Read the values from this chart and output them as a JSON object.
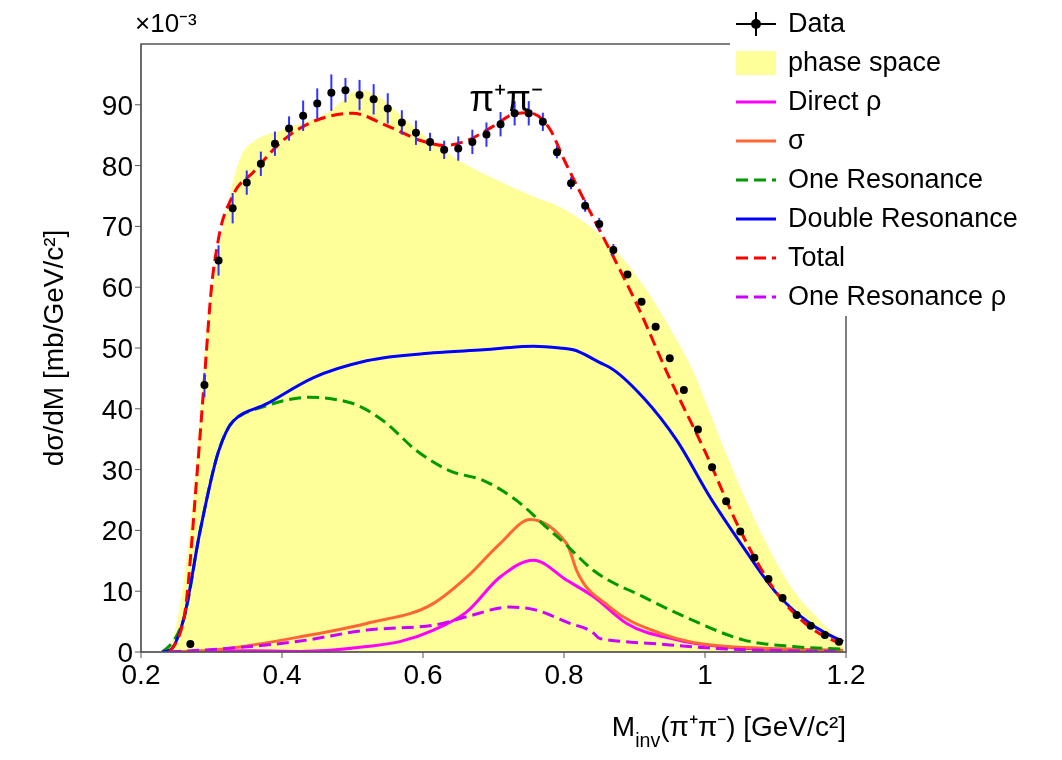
{
  "chart_data": {
    "type": "line",
    "xlabel": "M$_{inv}$(π⁺π⁻) [GeV/c²]",
    "ylabel": "dσ/dM [mb/GeV/c²]",
    "annotations": [
      "×10⁻³",
      "π⁺π⁻"
    ],
    "xlim": [
      0.2,
      1.2
    ],
    "xticks": [
      0.2,
      0.4,
      0.6,
      0.8,
      1,
      1.2
    ],
    "ylim": [
      0,
      100
    ],
    "yticks": [
      0,
      10,
      20,
      30,
      40,
      50,
      60,
      70,
      80,
      90
    ],
    "grid": false,
    "legend": "top right",
    "series": [
      {
        "name": "Data",
        "type": "scatter",
        "marker": "circle",
        "color": "#000000",
        "x": [
          0.27,
          0.29,
          0.31,
          0.33,
          0.35,
          0.37,
          0.39,
          0.41,
          0.43,
          0.45,
          0.47,
          0.49,
          0.51,
          0.53,
          0.55,
          0.57,
          0.59,
          0.61,
          0.63,
          0.65,
          0.67,
          0.69,
          0.71,
          0.73,
          0.75,
          0.77,
          0.79,
          0.81,
          0.83,
          0.85,
          0.87,
          0.89,
          0.91,
          0.93,
          0.95,
          0.97,
          0.99,
          1.01,
          1.03,
          1.05,
          1.07,
          1.09,
          1.11,
          1.13,
          1.15,
          1.17,
          1.19
        ],
        "values": [
          1.3,
          43.9,
          64.4,
          73.0,
          77.2,
          80.3,
          83.6,
          86.1,
          88.2,
          90.2,
          92.0,
          92.4,
          91.6,
          90.9,
          89.4,
          87.1,
          85.4,
          83.9,
          82.6,
          82.8,
          83.9,
          85.1,
          86.8,
          88.6,
          88.6,
          87.2,
          82.2,
          77.1,
          73.4,
          70.4,
          66.1,
          62.1,
          57.6,
          53.5,
          48.3,
          43.1,
          36.6,
          30.4,
          24.8,
          19.8,
          15.5,
          12.0,
          8.9,
          6.1,
          4.3,
          2.8,
          1.7
        ],
        "errors": [
          null,
          2,
          2.5,
          2.5,
          2,
          2,
          2,
          2,
          2.5,
          2.5,
          3,
          2,
          2.5,
          2.5,
          2.5,
          2,
          2,
          1.5,
          1.5,
          2,
          2,
          2,
          2,
          2,
          2,
          1.5,
          1,
          1,
          1,
          1,
          1,
          null,
          null,
          null,
          null,
          null,
          null,
          null,
          null,
          null,
          null,
          null,
          null,
          null,
          null,
          null,
          null
        ]
      },
      {
        "name": "phase space",
        "type": "area",
        "color": "#ffff99",
        "x": [
          0.22,
          0.236,
          0.255,
          0.274,
          0.293,
          0.316,
          0.345,
          0.359,
          0.407,
          0.463,
          0.511,
          0.534,
          0.558,
          0.591,
          0.638,
          0.709,
          0.756,
          0.794,
          0.851,
          0.915,
          0.95,
          0.988,
          1.002,
          1.04,
          1.078,
          1.125,
          1.163,
          1.196
        ],
        "values": [
          0,
          0.3,
          7.4,
          25.5,
          52.8,
          69.7,
          82.3,
          83.9,
          86.1,
          88.6,
          92.4,
          91.6,
          89.4,
          85.9,
          81.8,
          77.4,
          74.9,
          73.2,
          68.6,
          59.9,
          53.3,
          44.9,
          40.8,
          29.8,
          20.0,
          10.2,
          5.2,
          1.4
        ]
      },
      {
        "name": "Direct ρ",
        "type": "line",
        "color": "#ff00ff",
        "line_style": "solid",
        "x": [
          0.24,
          0.35,
          0.426,
          0.52,
          0.567,
          0.615,
          0.662,
          0.709,
          0.757,
          0.804,
          0.842,
          0.889,
          0.96,
          1.054,
          1.19
        ],
        "values": [
          0,
          0.2,
          0.1,
          0.9,
          1.7,
          3.6,
          6.6,
          12.3,
          15.1,
          11.8,
          9.1,
          4.7,
          2.0,
          0.6,
          0.1
        ]
      },
      {
        "name": "σ",
        "type": "line",
        "color": "#ff6633",
        "line_style": "solid",
        "x": [
          0.24,
          0.3,
          0.35,
          0.426,
          0.52,
          0.615,
          0.662,
          0.709,
          0.752,
          0.804,
          0.818,
          0.865,
          0.936,
          1.031,
          1.196
        ],
        "values": [
          0,
          0.3,
          1,
          2.5,
          4.7,
          8.0,
          12.3,
          17.8,
          21.8,
          17.8,
          13.4,
          7.4,
          3.1,
          0.9,
          0.3
        ]
      },
      {
        "name": "One Resonance",
        "type": "line",
        "color": "#009900",
        "line_style": "dashed",
        "x": [
          0.23,
          0.26,
          0.284,
          0.31,
          0.331,
          0.378,
          0.44,
          0.497,
          0.544,
          0.591,
          0.638,
          0.686,
          0.733,
          0.78,
          0.794,
          0.842,
          0.912,
          0.983,
          1.054,
          1.125,
          1.196
        ],
        "values": [
          0,
          5.2,
          20,
          33,
          38,
          40.5,
          41.9,
          41.0,
          38.0,
          33.1,
          29.8,
          28.2,
          24.9,
          20.0,
          18.6,
          13.4,
          9.1,
          5.2,
          2.0,
          0.9,
          0.5
        ]
      },
      {
        "name": "Double Resonance",
        "type": "line",
        "color": "#0000ff",
        "line_style": "solid",
        "x": [
          0.23,
          0.241,
          0.26,
          0.284,
          0.31,
          0.331,
          0.378,
          0.444,
          0.52,
          0.615,
          0.686,
          0.757,
          0.794,
          0.813,
          0.851,
          0.865,
          0.912,
          0.96,
          1.007,
          1.054,
          1.102,
          1.149,
          1.196
        ],
        "values": [
          0,
          0.3,
          5.2,
          20,
          33,
          38.0,
          40.8,
          45.1,
          47.9,
          49.2,
          49.7,
          50.3,
          50.0,
          49.7,
          47.6,
          46.8,
          41.9,
          34.8,
          25.5,
          17.3,
          9.6,
          4.7,
          1.7
        ]
      },
      {
        "name": "Total",
        "type": "line",
        "color": "#ff0000",
        "line_style": "dashed",
        "x": [
          0.24,
          0.26,
          0.28,
          0.29,
          0.3,
          0.31,
          0.33,
          0.36,
          0.4,
          0.45,
          0.5,
          0.55,
          0.6,
          0.63,
          0.66,
          0.7,
          0.73,
          0.75,
          0.78,
          0.8,
          0.83,
          0.87,
          0.9,
          0.95,
          1.0,
          1.05,
          1.1,
          1.15,
          1.19
        ],
        "values": [
          0,
          5,
          30,
          45,
          60,
          68,
          75,
          79,
          84,
          87.5,
          88.6,
          86.5,
          84,
          83.3,
          84,
          86.5,
          88.5,
          88.7,
          86,
          81,
          74,
          65,
          58,
          45,
          33,
          20,
          10,
          4,
          1.5
        ]
      },
      {
        "name": "One Resonance ρ",
        "type": "line",
        "color": "#cc00ff",
        "line_style": "dashed",
        "x": [
          0.24,
          0.426,
          0.52,
          0.615,
          0.662,
          0.723,
          0.757,
          0.794,
          0.804,
          0.842,
          0.851,
          0.936,
          1.031,
          1.19
        ],
        "values": [
          0,
          1.8,
          3.6,
          4.4,
          5.8,
          7.4,
          7.0,
          5.4,
          4.9,
          3.1,
          2.2,
          1.3,
          0.5,
          0.1
        ]
      }
    ]
  }
}
